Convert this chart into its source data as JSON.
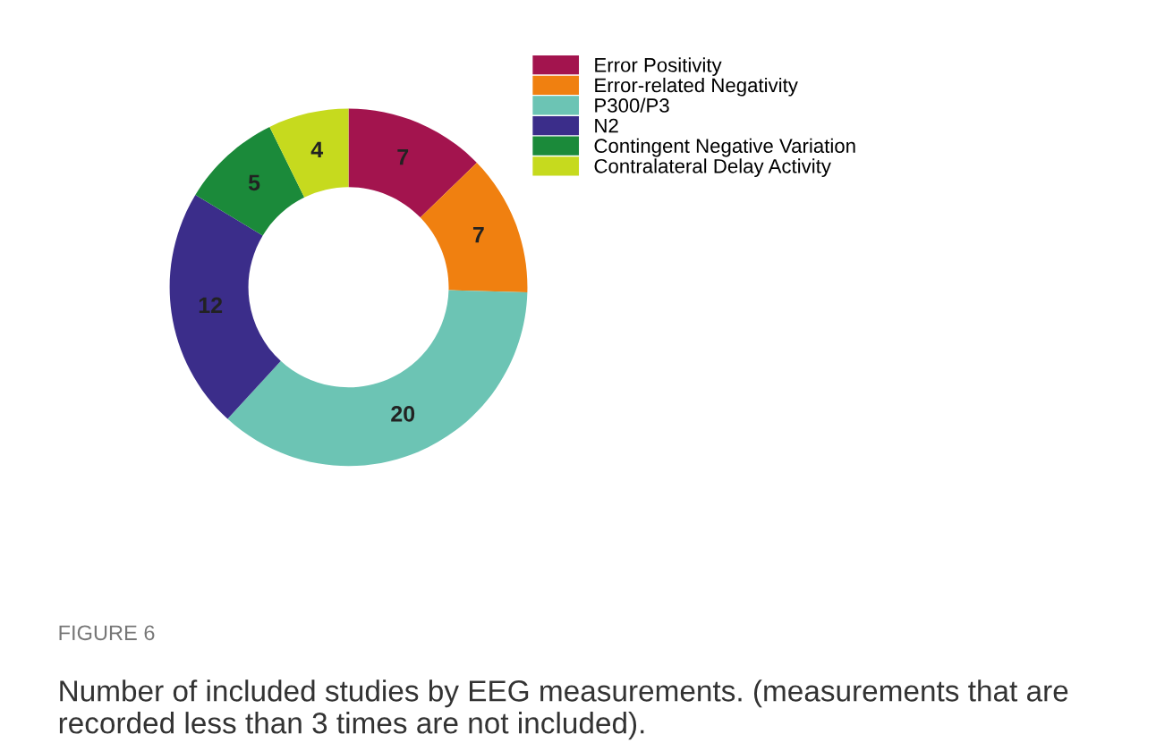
{
  "chart_data": {
    "type": "donut",
    "categories": [
      "Error Positivity",
      "Error-related Negativity",
      "P300/P3",
      "N2",
      "Contingent Negative Variation",
      "Contralateral Delay Activity"
    ],
    "values": [
      7,
      7,
      20,
      12,
      5,
      4
    ],
    "colors": [
      "#a3144e",
      "#f08010",
      "#6cc4b4",
      "#3b2d8a",
      "#1b8a3a",
      "#c6da1e"
    ],
    "data_labels": true,
    "legend": "top right",
    "annotations": [
      "FIGURE 6",
      "Number of included studies by EEG measurements. (measurements that are recorded less than 3 times are not included)."
    ]
  }
}
